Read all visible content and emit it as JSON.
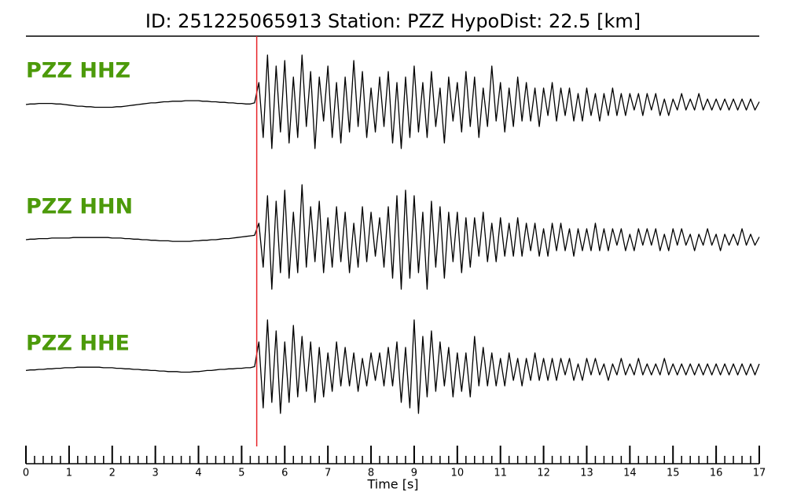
{
  "chart_data": {
    "type": "line",
    "title": "ID: 251225065913   Station: PZZ   HypoDist:    22.5 [km]",
    "xlabel": "Time [s]",
    "xlim": [
      0,
      17
    ],
    "xticks": [
      0,
      1,
      2,
      3,
      4,
      5,
      6,
      7,
      8,
      9,
      10,
      11,
      12,
      13,
      14,
      15,
      16,
      17
    ],
    "minor_tick_step": 0.2,
    "start_time": 0,
    "sample_interval": 0.1,
    "p_pick": 5.35,
    "pick_color": "#e8262a",
    "label_color": "#4c9a0a",
    "series": [
      {
        "name": "PZZ HHZ",
        "color": "#000000",
        "values": [
          0,
          0.01,
          0.01,
          0.02,
          0.02,
          0.02,
          0.02,
          0.01,
          0.01,
          0,
          -0.01,
          -0.02,
          -0.03,
          -0.03,
          -0.04,
          -0.04,
          -0.05,
          -0.05,
          -0.05,
          -0.05,
          -0.05,
          -0.04,
          -0.04,
          -0.03,
          -0.02,
          -0.01,
          0,
          0.01,
          0.02,
          0.03,
          0.03,
          0.04,
          0.05,
          0.05,
          0.06,
          0.06,
          0.06,
          0.07,
          0.07,
          0.07,
          0.07,
          0.06,
          0.06,
          0.05,
          0.05,
          0.04,
          0.04,
          0.03,
          0.03,
          0.02,
          0.02,
          0.01,
          0.01,
          0.03,
          0.4,
          -0.6,
          0.9,
          -0.8,
          0.7,
          -0.5,
          0.8,
          -0.7,
          0.5,
          -0.6,
          0.9,
          -0.4,
          0.6,
          -0.8,
          0.5,
          -0.3,
          0.7,
          -0.6,
          0.4,
          -0.7,
          0.5,
          -0.5,
          0.8,
          -0.4,
          0.6,
          -0.6,
          0.3,
          -0.5,
          0.5,
          -0.4,
          0.6,
          -0.7,
          0.4,
          -0.8,
          0.5,
          -0.6,
          0.7,
          -0.5,
          0.4,
          -0.6,
          0.6,
          -0.4,
          0.3,
          -0.7,
          0.5,
          -0.3,
          0.4,
          -0.5,
          0.6,
          -0.4,
          0.5,
          -0.6,
          0.3,
          -0.4,
          0.7,
          -0.3,
          0.4,
          -0.5,
          0.3,
          -0.4,
          0.5,
          -0.3,
          0.4,
          -0.3,
          0.3,
          -0.4,
          0.3,
          -0.2,
          0.4,
          -0.3,
          0.3,
          -0.2,
          0.3,
          -0.3,
          0.2,
          -0.3,
          0.3,
          -0.2,
          0.2,
          -0.3,
          0.2,
          -0.2,
          0.3,
          -0.2,
          0.2,
          -0.2,
          0.2,
          -0.1,
          0.2,
          -0.2,
          0.2,
          -0.1,
          0.2,
          -0.2,
          0.1,
          -0.2,
          0.1,
          -0.1,
          0.2,
          -0.1,
          0.1,
          -0.1,
          0.2,
          -0.1,
          0.1,
          -0.1,
          0.1,
          -0.1,
          0.1,
          -0.1,
          0.1,
          -0.1,
          0.1,
          -0.1,
          0.1,
          -0.1,
          0.05
        ]
      },
      {
        "name": "PZZ HHN",
        "color": "#000000",
        "values": [
          0,
          0.01,
          0.01,
          0.02,
          0.02,
          0.02,
          0.03,
          0.03,
          0.03,
          0.03,
          0.03,
          0.04,
          0.04,
          0.04,
          0.04,
          0.04,
          0.04,
          0.04,
          0.04,
          0.04,
          0.03,
          0.03,
          0.03,
          0.02,
          0.02,
          0.01,
          0.01,
          0,
          0,
          -0.01,
          -0.01,
          -0.02,
          -0.02,
          -0.02,
          -0.03,
          -0.03,
          -0.03,
          -0.03,
          -0.03,
          -0.02,
          -0.02,
          -0.01,
          -0.01,
          0,
          0,
          0.01,
          0.02,
          0.02,
          0.03,
          0.04,
          0.05,
          0.06,
          0.07,
          0.08,
          0.3,
          -0.5,
          0.8,
          -0.9,
          0.7,
          -0.6,
          0.9,
          -0.7,
          0.5,
          -0.6,
          1.0,
          -0.5,
          0.6,
          -0.4,
          0.7,
          -0.6,
          0.4,
          -0.5,
          0.6,
          -0.4,
          0.5,
          -0.6,
          0.3,
          -0.5,
          0.6,
          -0.4,
          0.5,
          -0.3,
          0.4,
          -0.5,
          0.6,
          -0.7,
          0.8,
          -0.9,
          0.9,
          -0.7,
          0.8,
          -0.6,
          0.5,
          -0.9,
          0.7,
          -0.5,
          0.6,
          -0.7,
          0.5,
          -0.4,
          0.5,
          -0.6,
          0.4,
          -0.5,
          0.4,
          -0.3,
          0.5,
          -0.4,
          0.3,
          -0.4,
          0.4,
          -0.3,
          0.3,
          -0.3,
          0.4,
          -0.3,
          0.3,
          -0.2,
          0.3,
          -0.3,
          0.2,
          -0.3,
          0.3,
          -0.2,
          0.3,
          -0.2,
          0.2,
          -0.3,
          0.2,
          -0.2,
          0.2,
          -0.2,
          0.3,
          -0.2,
          0.2,
          -0.2,
          0.2,
          -0.1,
          0.2,
          -0.2,
          0.1,
          -0.2,
          0.2,
          -0.1,
          0.2,
          -0.1,
          0.2,
          -0.2,
          0.1,
          -0.2,
          0.2,
          -0.1,
          0.2,
          -0.1,
          0.1,
          -0.2,
          0.1,
          -0.1,
          0.2,
          -0.1,
          0.1,
          -0.2,
          0.1,
          -0.1,
          0.1,
          -0.1,
          0.2,
          -0.1,
          0.1,
          -0.1,
          0.05
        ]
      },
      {
        "name": "PZZ HHE",
        "color": "#000000",
        "values": [
          -0.02,
          -0.01,
          -0.01,
          0,
          0,
          0.01,
          0.01,
          0.02,
          0.02,
          0.03,
          0.03,
          0.03,
          0.04,
          0.04,
          0.04,
          0.04,
          0.04,
          0.04,
          0.03,
          0.03,
          0.03,
          0.02,
          0.02,
          0.01,
          0.01,
          0,
          0,
          -0.01,
          -0.01,
          -0.02,
          -0.02,
          -0.03,
          -0.03,
          -0.04,
          -0.04,
          -0.04,
          -0.05,
          -0.05,
          -0.05,
          -0.04,
          -0.04,
          -0.03,
          -0.02,
          -0.02,
          -0.01,
          0,
          0,
          0.01,
          0.01,
          0.02,
          0.02,
          0.03,
          0.03,
          0.05,
          0.5,
          -0.7,
          0.9,
          -0.6,
          0.7,
          -0.8,
          0.5,
          -0.6,
          0.8,
          -0.5,
          0.6,
          -0.4,
          0.5,
          -0.6,
          0.4,
          -0.5,
          0.3,
          -0.4,
          0.5,
          -0.3,
          0.4,
          -0.3,
          0.3,
          -0.4,
          0.2,
          -0.3,
          0.3,
          -0.2,
          0.3,
          -0.3,
          0.4,
          -0.3,
          0.5,
          -0.6,
          0.4,
          -0.7,
          0.9,
          -0.8,
          0.6,
          -0.5,
          0.7,
          -0.4,
          0.5,
          -0.3,
          0.4,
          -0.5,
          0.3,
          -0.4,
          0.3,
          -0.5,
          0.6,
          -0.3,
          0.4,
          -0.3,
          0.3,
          -0.3,
          0.2,
          -0.3,
          0.3,
          -0.2,
          0.2,
          -0.3,
          0.2,
          -0.2,
          0.3,
          -0.2,
          0.2,
          -0.2,
          0.2,
          -0.2,
          0.2,
          -0.1,
          0.2,
          -0.2,
          0.1,
          -0.2,
          0.2,
          -0.1,
          0.2,
          -0.1,
          0.1,
          -0.2,
          0.1,
          -0.1,
          0.2,
          -0.1,
          0.1,
          -0.1,
          0.2,
          -0.1,
          0.1,
          -0.1,
          0.1,
          -0.1,
          0.2,
          -0.1,
          0.1,
          -0.1,
          0.1,
          -0.1,
          0.1,
          -0.1,
          0.1,
          -0.1,
          0.1,
          -0.1,
          0.1,
          -0.1,
          0.1,
          -0.1,
          0.1,
          -0.1,
          0.1,
          -0.1,
          0.1,
          -0.1,
          0.1
        ]
      }
    ]
  }
}
